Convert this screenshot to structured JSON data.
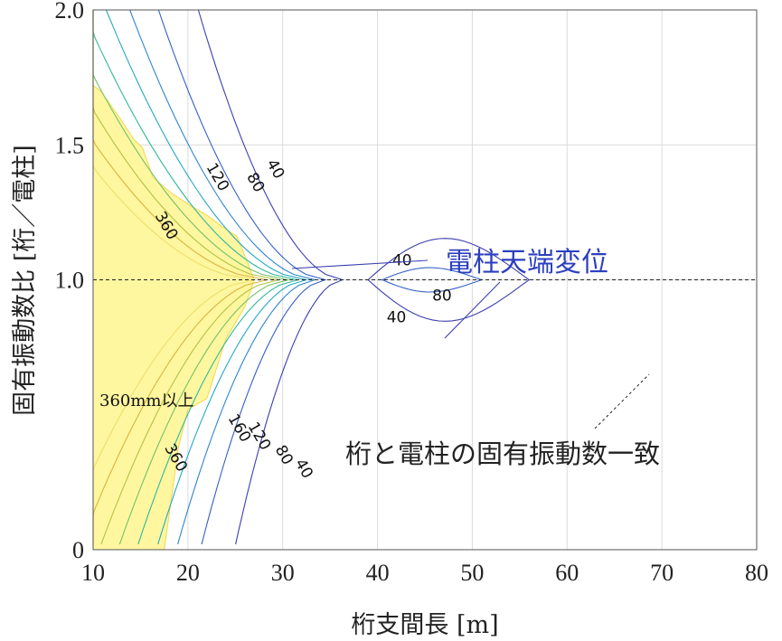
{
  "chart_data": {
    "type": "contour",
    "xlabel": "桁支間長 [m]",
    "ylabel": "固有振動数比 [桁／電柱]",
    "xlim": [
      10,
      80
    ],
    "ylim": [
      0,
      2.0
    ],
    "x_ticks": [
      "10",
      "20",
      "30",
      "40",
      "50",
      "60",
      "70",
      "80"
    ],
    "y_ticks": [
      "0",
      "1.0",
      "1.5",
      "2.0"
    ],
    "y_tick_values": [
      0,
      1.0,
      1.5,
      2.0
    ],
    "grid": true,
    "reference_line_y": 1.0,
    "contour_levels": [
      40,
      80,
      120,
      160,
      200,
      240,
      280,
      320,
      360
    ],
    "contour_labels": [
      {
        "text": "40",
        "x": 29.2,
        "y": 1.41
      },
      {
        "text": "80",
        "x": 27.1,
        "y": 1.36
      },
      {
        "text": "120",
        "x": 23.1,
        "y": 1.38
      },
      {
        "text": "360",
        "x": 17.7,
        "y": 1.2
      },
      {
        "text": "40",
        "x": 42.6,
        "y": 1.07
      },
      {
        "text": "80",
        "x": 46.8,
        "y": 0.94
      },
      {
        "text": "40",
        "x": 42.0,
        "y": 0.86
      },
      {
        "text": "40",
        "x": 32.2,
        "y": 0.3
      },
      {
        "text": "80",
        "x": 30.1,
        "y": 0.35
      },
      {
        "text": "120",
        "x": 27.5,
        "y": 0.42
      },
      {
        "text": "160",
        "x": 25.4,
        "y": 0.45
      },
      {
        "text": "360",
        "x": 18.7,
        "y": 0.34
      }
    ],
    "annotations": {
      "region": "360mm以上",
      "series": "電柱天端変位",
      "match": "桁と電柱の固有振動数一致"
    },
    "colors": {
      "fill_360": "#fff6a0",
      "levels": [
        "#3b3fb0",
        "#3560c8",
        "#2f86cf",
        "#25a9c3",
        "#30b99a",
        "#72c266",
        "#b0c442",
        "#d9b43c",
        "#ece06a"
      ],
      "annotation_blue": "#2c3fbf"
    }
  }
}
